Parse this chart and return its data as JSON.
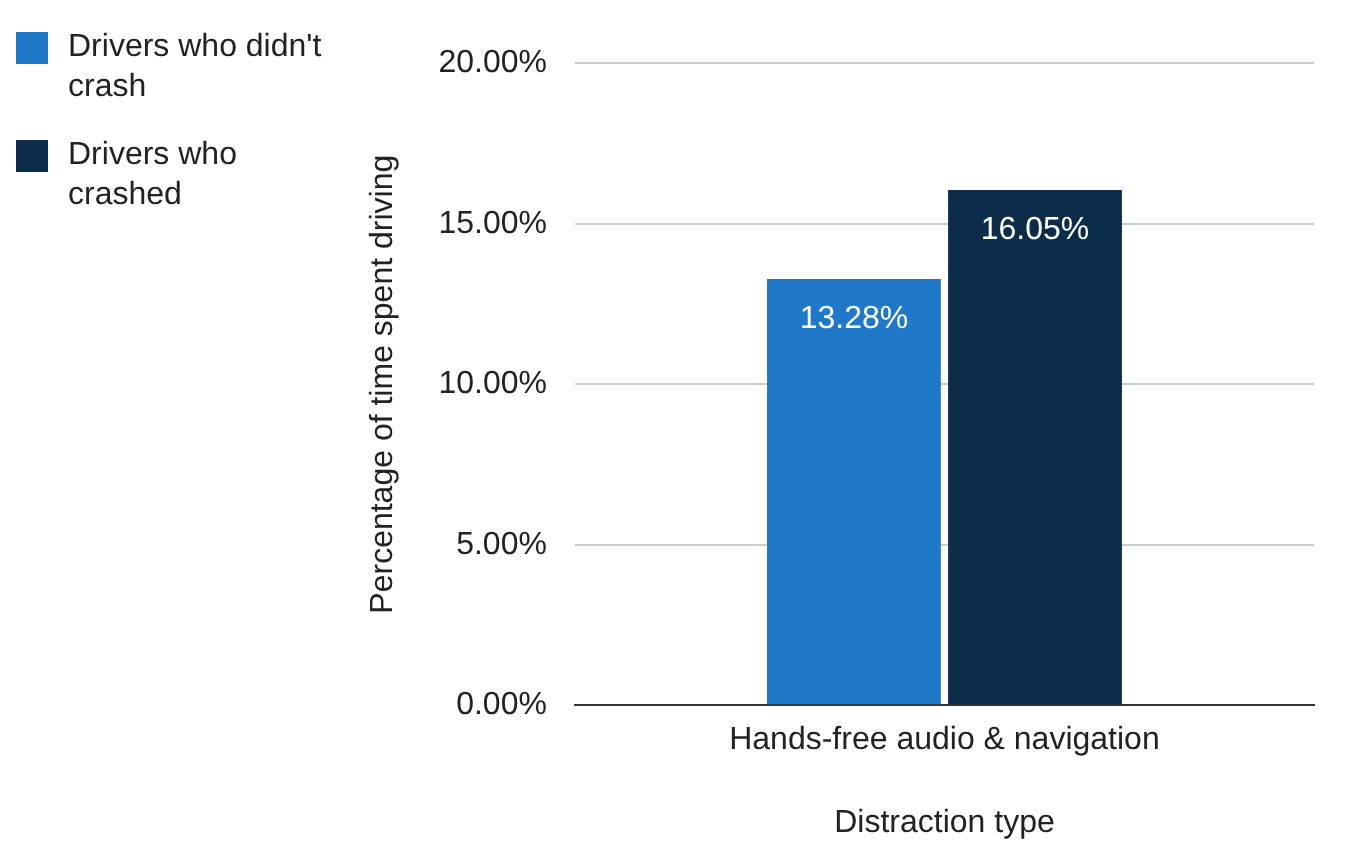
{
  "chart_data": {
    "type": "bar",
    "xlabel": "Distraction type",
    "ylabel": "Percentage of time spent driving",
    "categories": [
      "Hands-free audio & navigation"
    ],
    "series": [
      {
        "name": "Drivers who didn't crash",
        "color": "#1f78c8",
        "values": [
          13.28
        ],
        "value_labels": [
          "13.28%"
        ]
      },
      {
        "name": "Drivers who crashed",
        "color": "#0b2d4a",
        "values": [
          16.05
        ],
        "value_labels": [
          "16.05%"
        ]
      }
    ],
    "ylim": [
      0,
      20
    ],
    "yticks": [
      {
        "value": 0,
        "label": "0.00%"
      },
      {
        "value": 5,
        "label": "5.00%"
      },
      {
        "value": 10,
        "label": "10.00%"
      },
      {
        "value": 15,
        "label": "15.00%"
      },
      {
        "value": 20,
        "label": "20.00%"
      }
    ],
    "grid": "y",
    "legend": "left"
  }
}
